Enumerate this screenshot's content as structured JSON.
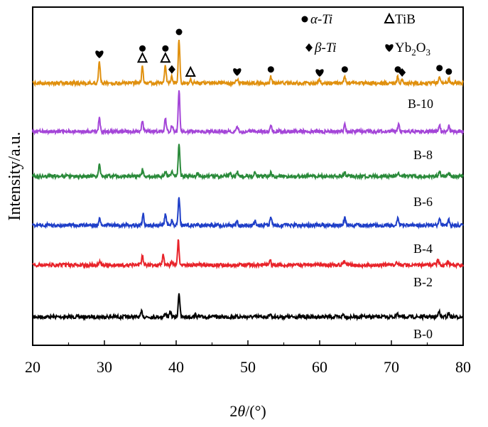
{
  "chart_data": {
    "type": "line",
    "title": "",
    "xlabel": "2θ/(°)",
    "ylabel": "Intensity/a.u.",
    "xlim": [
      20,
      80
    ],
    "xticks": [
      20,
      30,
      40,
      50,
      60,
      70,
      80
    ],
    "y_ticks_shown": false,
    "legend_position": "top-right",
    "legend": [
      {
        "symbol": "circle",
        "label": "α-Ti"
      },
      {
        "symbol": "triangle",
        "label": "TiB"
      },
      {
        "symbol": "diamond",
        "label": "β-Ti"
      },
      {
        "symbol": "heart",
        "label": "Yb2O3"
      }
    ],
    "series": [
      {
        "name": "B-0",
        "color": "#000000",
        "offset": 0,
        "peaks": [
          [
            35.2,
            0.12
          ],
          [
            38.5,
            0.08
          ],
          [
            39.2,
            0.12
          ],
          [
            40.4,
            0.55
          ],
          [
            42.7,
            0.05
          ],
          [
            53.1,
            0.08
          ],
          [
            63.3,
            0.06
          ],
          [
            70.8,
            0.1
          ],
          [
            76.6,
            0.15
          ],
          [
            78.0,
            0.08
          ]
        ]
      },
      {
        "name": "B-2",
        "color": "#e8232a",
        "offset": 1,
        "peaks": [
          [
            29.4,
            0.1
          ],
          [
            35.3,
            0.2
          ],
          [
            38.2,
            0.25
          ],
          [
            39.4,
            0.1
          ],
          [
            40.3,
            0.55
          ],
          [
            53.1,
            0.12
          ],
          [
            63.4,
            0.08
          ],
          [
            70.7,
            0.1
          ],
          [
            76.5,
            0.12
          ],
          [
            77.9,
            0.08
          ]
        ]
      },
      {
        "name": "B-4",
        "color": "#1f3fc8",
        "offset": 2,
        "peaks": [
          [
            29.3,
            0.15
          ],
          [
            35.4,
            0.25
          ],
          [
            38.5,
            0.25
          ],
          [
            39.4,
            0.1
          ],
          [
            40.4,
            0.65
          ],
          [
            48.5,
            0.08
          ],
          [
            51.0,
            0.1
          ],
          [
            53.2,
            0.2
          ],
          [
            63.5,
            0.2
          ],
          [
            70.9,
            0.15
          ],
          [
            76.7,
            0.18
          ],
          [
            78.0,
            0.12
          ]
        ]
      },
      {
        "name": "B-6",
        "color": "#2a8a3a",
        "offset": 3,
        "peaks": [
          [
            29.3,
            0.3
          ],
          [
            35.3,
            0.15
          ],
          [
            38.5,
            0.12
          ],
          [
            39.4,
            0.1
          ],
          [
            40.4,
            0.75
          ],
          [
            43.0,
            0.08
          ],
          [
            47.5,
            0.08
          ],
          [
            48.5,
            0.1
          ],
          [
            51.0,
            0.1
          ],
          [
            53.2,
            0.08
          ],
          [
            63.5,
            0.08
          ],
          [
            71.0,
            0.08
          ],
          [
            76.7,
            0.1
          ],
          [
            78.0,
            0.08
          ]
        ]
      },
      {
        "name": "B-8",
        "color": "#a445d8",
        "offset": 4,
        "peaks": [
          [
            29.3,
            0.3
          ],
          [
            35.3,
            0.25
          ],
          [
            38.5,
            0.3
          ],
          [
            39.4,
            0.15
          ],
          [
            40.4,
            0.95
          ],
          [
            48.5,
            0.1
          ],
          [
            53.2,
            0.15
          ],
          [
            63.5,
            0.15
          ],
          [
            71.0,
            0.18
          ],
          [
            76.7,
            0.15
          ],
          [
            78.0,
            0.12
          ]
        ]
      },
      {
        "name": "B-10",
        "color": "#e0900e",
        "offset": 5,
        "peaks": [
          [
            29.3,
            0.5
          ],
          [
            35.3,
            0.4
          ],
          [
            38.5,
            0.4
          ],
          [
            39.4,
            0.15
          ],
          [
            40.4,
            1.0
          ],
          [
            42.0,
            0.08
          ],
          [
            48.5,
            0.1
          ],
          [
            53.2,
            0.15
          ],
          [
            60.0,
            0.08
          ],
          [
            63.5,
            0.15
          ],
          [
            70.9,
            0.15
          ],
          [
            71.5,
            0.08
          ],
          [
            76.7,
            0.18
          ],
          [
            78.0,
            0.1
          ]
        ]
      }
    ],
    "annotations_on": "B-10",
    "phase_markers": [
      {
        "symbol": "heart",
        "x": 29.3
      },
      {
        "symbol": "triangle",
        "x": 35.3
      },
      {
        "symbol": "circle",
        "x": 35.3
      },
      {
        "symbol": "triangle",
        "x": 38.5
      },
      {
        "symbol": "circle",
        "x": 38.5
      },
      {
        "symbol": "diamond",
        "x": 39.4
      },
      {
        "symbol": "circle",
        "x": 40.4
      },
      {
        "symbol": "triangle",
        "x": 42.0
      },
      {
        "symbol": "heart",
        "x": 48.5
      },
      {
        "symbol": "circle",
        "x": 53.2
      },
      {
        "symbol": "heart",
        "x": 60.0
      },
      {
        "symbol": "circle",
        "x": 63.5
      },
      {
        "symbol": "circle",
        "x": 70.9
      },
      {
        "symbol": "diamond",
        "x": 71.5
      },
      {
        "symbol": "circle",
        "x": 76.7
      },
      {
        "symbol": "circle",
        "x": 78.0
      }
    ]
  }
}
